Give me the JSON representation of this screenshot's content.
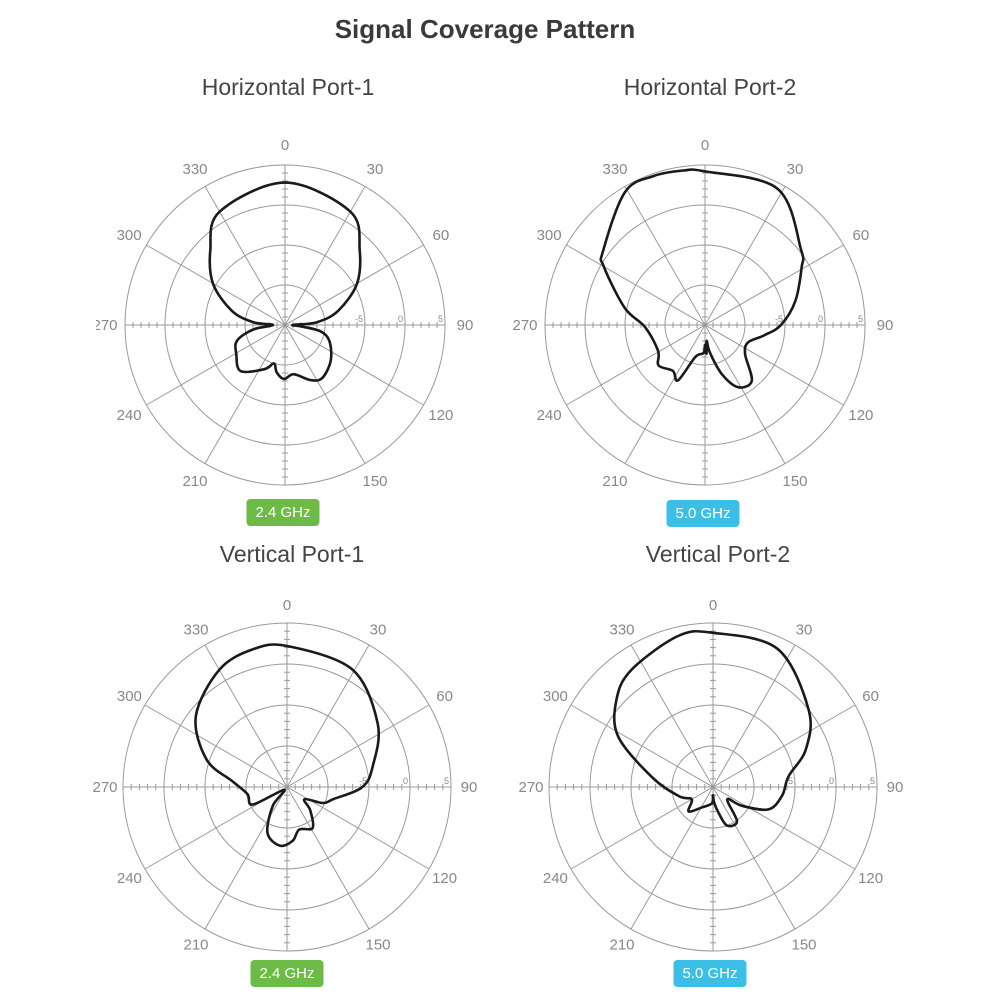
{
  "title": "Signal Coverage Pattern",
  "colors": {
    "band_2_4": "#6cbb46",
    "band_5_0": "#3bbfe6",
    "grid": "#9a9a9a",
    "trace": "#1a1a1a"
  },
  "panels": [
    {
      "title": "Horizontal Port-1",
      "badge": "2.4 GHz",
      "badge_color": "#6cbb46"
    },
    {
      "title": "Horizontal Port-2",
      "badge": "5.0 GHz",
      "badge_color": "#3bbfe6"
    },
    {
      "title": "Vertical Port-1",
      "badge": "2.4 GHz",
      "badge_color": "#6cbb46"
    },
    {
      "title": "Vertical Port-2",
      "badge": "5.0 GHz",
      "badge_color": "#3bbfe6"
    }
  ],
  "chart_data": [
    {
      "type": "polar-line",
      "title": "Horizontal Port-1",
      "theta_ticks": [
        "0",
        "30",
        "60",
        "90",
        "120",
        "150",
        "210",
        "240",
        "270",
        "300",
        "330"
      ],
      "r_range": [
        -15,
        5
      ],
      "r_rings": [
        -10,
        -5,
        0,
        5
      ],
      "r_tick_labels": [
        "-5",
        "0",
        "5"
      ],
      "grid": true,
      "angles": [
        0,
        30,
        45,
        60,
        75,
        85,
        90,
        95,
        100,
        110,
        128,
        145,
        155,
        170,
        181,
        190,
        196,
        205,
        224,
        239,
        252,
        262,
        270,
        275,
        285,
        300,
        315,
        330
      ],
      "values": [
        2.8,
        1.35,
        -1.8,
        -4.6,
        -8.1,
        -11,
        -14,
        -13,
        -10.5,
        -9.1,
        -7.75,
        -6.9,
        -7.4,
        -8.75,
        -8.25,
        -9,
        -10,
        -8.9,
        -7,
        -7.9,
        -8.7,
        -11,
        -13.5,
        -11,
        -8.1,
        -4.6,
        -1.8,
        1.35
      ]
    },
    {
      "type": "polar-line",
      "title": "Horizontal Port-2",
      "theta_ticks": [
        "0",
        "30",
        "60",
        "90",
        "120",
        "150",
        "210",
        "240",
        "270",
        "300",
        "330"
      ],
      "r_range": [
        -15,
        5
      ],
      "r_rings": [
        -10,
        -5,
        0,
        5
      ],
      "r_tick_labels": [
        "-5",
        "0",
        "5"
      ],
      "grid": true,
      "angles": [
        0,
        28,
        52,
        59,
        75,
        90,
        100,
        112,
        126,
        140,
        152,
        161,
        170,
        174,
        177,
        180,
        183,
        197,
        206,
        215,
        229,
        241,
        268,
        282,
        300,
        306,
        329,
        341,
        352
      ],
      "values": [
        4.2,
        4.3,
        0.25,
        -0.9,
        -3.3,
        -5.5,
        -7.5,
        -9.2,
        -8.8,
        -5.9,
        -6.2,
        -8.5,
        -11.5,
        -13,
        -11.4,
        -12.5,
        -11.5,
        -10.8,
        -7.3,
        -8,
        -7.3,
        -8.3,
        -7.5,
        -4.75,
        -0.4,
        0.75,
        4.4,
        4.7,
        4.5
      ]
    },
    {
      "type": "polar-line",
      "title": "Vertical Port-1",
      "theta_ticks": [
        "0",
        "30",
        "60",
        "90",
        "120",
        "150",
        "210",
        "240",
        "270",
        "300",
        "330"
      ],
      "r_range": [
        -15,
        5
      ],
      "r_rings": [
        -10,
        -5,
        0,
        5
      ],
      "r_tick_labels": [
        "-5",
        "0",
        "5"
      ],
      "grid": true,
      "angles": [
        0,
        29,
        55,
        76,
        90,
        105,
        114,
        125,
        135,
        148,
        164,
        174,
        187,
        203,
        217,
        225,
        243,
        260,
        276,
        289,
        308,
        330,
        346
      ],
      "values": [
        2.2,
        1.4,
        -1.5,
        -4.2,
        -5.8,
        -9.2,
        -10.2,
        -12.4,
        -11,
        -9.1,
        -9.6,
        -8.4,
        -7.8,
        -8.9,
        -12.1,
        -14.5,
        -10.3,
        -10.1,
        -8.3,
        -4.6,
        -0.9,
        1.5,
        2.3
      ]
    },
    {
      "type": "polar-line",
      "title": "Vertical Port-2",
      "theta_ticks": [
        "0",
        "30",
        "60",
        "90",
        "120",
        "150",
        "210",
        "240",
        "270",
        "300",
        "330"
      ],
      "r_range": [
        -15,
        5
      ],
      "r_rings": [
        -10,
        -5,
        0,
        5
      ],
      "r_tick_labels": [
        "-5",
        "0",
        "5"
      ],
      "grid": true,
      "angles": [
        0,
        25,
        51,
        68,
        82,
        97,
        112,
        123,
        131,
        145,
        160,
        168,
        176,
        180,
        184,
        208,
        225,
        240,
        255,
        279,
        298,
        312,
        325,
        347
      ],
      "values": [
        3.8,
        3.6,
        0,
        -2.8,
        -5.7,
        -6.5,
        -7.7,
        -10.8,
        -12.7,
        -9.9,
        -10,
        -11.8,
        -13.1,
        -14,
        -13,
        -12.2,
        -10.8,
        -12,
        -10.7,
        -7.5,
        -1.9,
        0.85,
        2.4,
        3.9
      ]
    }
  ]
}
